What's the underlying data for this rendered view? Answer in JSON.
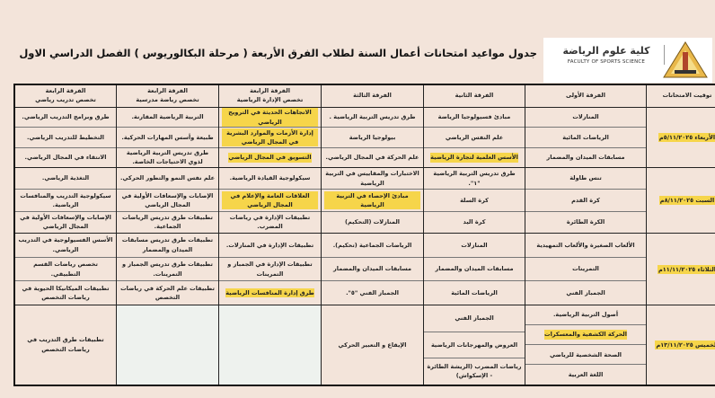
{
  "logo": {
    "name_ar": "كلية علوم الرياضة",
    "name_en": "FACULTY OF SPORTS SCIENCE"
  },
  "title": "جدول مواعيد امتحانات أعمال السنة لطلاب الفرق الأربعة ( مرحلة البكالوريوس ) الفصل الدراسي الاول",
  "colors": {
    "highlight": "#f6d54a",
    "background": "#f3e4da",
    "empty_cell": "#eef2ee"
  },
  "headers": [
    {
      "line1": "توقيت الامتحانات",
      "line2": ""
    },
    {
      "line1": "الفرقة الأولى",
      "line2": ""
    },
    {
      "line1": "الفرقة الثانية",
      "line2": ""
    },
    {
      "line1": "الفرقة الثالثة",
      "line2": ""
    },
    {
      "line1": "الفرقة الرابعة",
      "line2": "تخصص الإدارة الرياضية"
    },
    {
      "line1": "الفرقة الرابعة",
      "line2": "تخصص رياضة مدرسية"
    },
    {
      "line1": "الفرقة الرابعة",
      "line2": "تخصص تدريب رياضي"
    }
  ],
  "rows": [
    {
      "date": "الأربعاء ٥/١١/٢٠٢٥م",
      "cells": [
        [
          {
            "text": "المنازلات"
          },
          {
            "text": "الرياضات المائية"
          },
          {
            "text": "مسابقات الميدان والمضمار"
          }
        ],
        [
          {
            "text": "مبادئ فسيولوجيا الرياضة"
          },
          {
            "text": "علم النفس الرياضي"
          },
          {
            "text": "الأسس العلمية لتجارة الرياضية",
            "hl": true
          }
        ],
        [
          {
            "text": "طرق تدريس التربية الرياضية ."
          },
          {
            "text": "بيولوجيا الرياضة"
          },
          {
            "text": "علم الحركة في المجال الرياضي."
          }
        ],
        [
          {
            "text": "الاتجاهات الحديثة في الترويح الرياضي",
            "hl": true
          },
          {
            "text": "إدارة الأزمات والموارد البشرية في المجال الرياضي",
            "hl": true
          },
          {
            "text": "التسويق في المجال الرياضي",
            "hl": true
          }
        ],
        [
          {
            "text": "التربية الرياضية المقارنة."
          },
          {
            "text": "طبيعة وأسس المهارات الحركية."
          },
          {
            "text": "طرق تدريس التربية الرياضية لذوي الاحتياجات الخاصة."
          }
        ],
        [
          {
            "text": "طرق وبرامج التدريب الرياضي."
          },
          {
            "text": "التخطيط للتدريب الرياضي."
          },
          {
            "text": "الانتقاء في المجال الرياضي."
          }
        ]
      ]
    },
    {
      "date": "السبت ٨/١١/٢٠٢٥م",
      "cells": [
        [
          {
            "text": "تنس طاولة"
          },
          {
            "text": "كرة القدم"
          },
          {
            "text": "الكرة الطائرة"
          }
        ],
        [
          {
            "text": "طرق تدريس التربية الرياضية \"١\"."
          },
          {
            "text": "كرة السلة"
          },
          {
            "text": "كرة اليد"
          }
        ],
        [
          {
            "text": "الاختبارات والمقاييس في التربية الرياضية"
          },
          {
            "text": "مبادئ الإحصاء في التربية الرياضية",
            "hl": true
          },
          {
            "text": "المنازلات (التحكيم)"
          }
        ],
        [
          {
            "text": "سيكولوجية القيادة الرياضية."
          },
          {
            "text": "العلاقات العامة والإعلام في المجال الرياضي",
            "hl": true
          },
          {
            "text": "تطبيقات الإدارة في رياضات المضرب."
          }
        ],
        [
          {
            "text": "علم نفس النمو والتطور الحركي."
          },
          {
            "text": "الإصابات والإسعافات الأولية في المجال الرياضي"
          },
          {
            "text": "تطبيقات طرق تدريس الرياضات الجماعية."
          }
        ],
        [
          {
            "text": "التغذية الرياضي."
          },
          {
            "text": "سيكولوجية التدريب والمنافسات الرياضية."
          },
          {
            "text": "الإصابات والإسعافات الأولية في المجال الرياضي"
          }
        ]
      ]
    },
    {
      "date": "الثلاثاء ١١/١١/٢٠٢٥م",
      "cells": [
        [
          {
            "text": "الألعاب الصغيرة والألعاب التمهيدية"
          },
          {
            "text": "التمرينات"
          },
          {
            "text": "الجمباز الفني"
          }
        ],
        [
          {
            "text": "المنازلات"
          },
          {
            "text": "مسابقات الميدان والمضمار"
          },
          {
            "text": "الرياضات المائية"
          }
        ],
        [
          {
            "text": "الرياضات الجماعية (تحكيم)."
          },
          {
            "text": "مسابقات الميدان والمضمار"
          },
          {
            "text": "الجمباز الفني \"٥\"."
          }
        ],
        [
          {
            "text": "تطبيقات الإدارة في المنازلات."
          },
          {
            "text": "تطبيقات الإدارة في الجمباز و التمرينات"
          },
          {
            "text": "طرق إدارة المنافسات الرياضية",
            "hl": true
          }
        ],
        [
          {
            "text": "تطبيقات طرق تدريس مسابقات الميدان والمضمار"
          },
          {
            "text": "تطبيقات طرق تدريس الجمباز و التمرينات."
          },
          {
            "text": "تطبيقات علم الحركة في رياضات التخصص"
          }
        ],
        [
          {
            "text": "الأسس الفسيولوجية في التدريب الرياضي."
          },
          {
            "text": "تخصص رياضات القسم التطبيقي."
          },
          {
            "text": "تطبيقات الميكانيكا الحيوية في رياضات التخصص"
          }
        ]
      ]
    },
    {
      "date": "الخميس ١٣/١١/٢٠٢٥م",
      "cells": [
        [
          {
            "text": "أصول التربية الرياضية."
          },
          {
            "text": "الحركة الكشفية والمعسكرات",
            "hl": true
          },
          {
            "text": "الصحة الشخصية للرياضي"
          },
          {
            "text": "اللغة العربية"
          }
        ],
        [
          {
            "text": "الجمباز الفني"
          },
          {
            "text": "العروض والمهرجانات الرياضية"
          },
          {
            "text": "رياضات المضرب (الريشة الطائرة - الإسكواش)"
          }
        ],
        [
          {
            "text": "الإيقاع و التعبير الحركي"
          }
        ],
        [],
        [],
        [
          {
            "text": "تطبيقات طرق التدريب في رياضات التخصص"
          }
        ]
      ]
    }
  ]
}
